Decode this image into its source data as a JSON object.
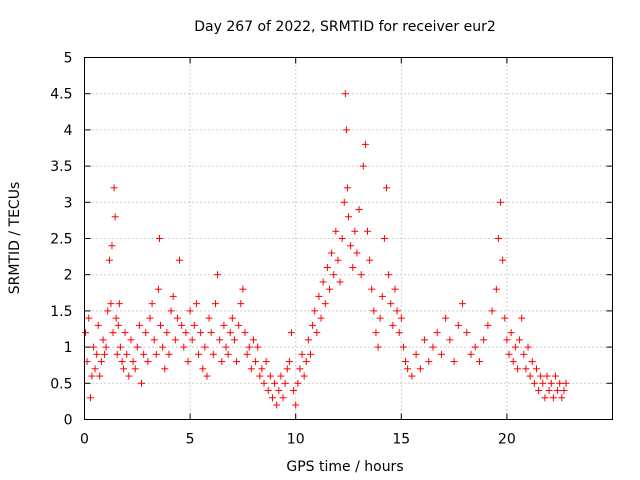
{
  "chart_data": {
    "type": "scatter",
    "title": "Day 267 of 2022, SRMTID for receiver eur2",
    "xlabel": "GPS time / hours",
    "ylabel": "SRMTID / TECUs",
    "xlim": [
      0,
      25
    ],
    "ylim": [
      0,
      5
    ],
    "xticks": [
      0,
      5,
      10,
      15,
      20
    ],
    "xtick_labels": [
      "0",
      "5",
      "10",
      "15",
      "20"
    ],
    "yticks": [
      0,
      0.5,
      1,
      1.5,
      2,
      2.5,
      3,
      3.5,
      4,
      4.5,
      5
    ],
    "ytick_labels": [
      "0",
      "0.5",
      "1",
      "1.5",
      "2",
      "2.5",
      "3",
      "3.5",
      "4",
      "4.5",
      "5"
    ],
    "grid": true,
    "marker": "plus",
    "color": "#ff0000",
    "series": [
      {
        "name": "SRMTID",
        "x": [
          0.05,
          0.12,
          0.2,
          0.28,
          0.35,
          0.42,
          0.5,
          0.58,
          0.65,
          0.72,
          0.8,
          0.88,
          0.95,
          1.02,
          1.1,
          1.18,
          1.25,
          1.3,
          1.35,
          1.4,
          1.45,
          1.5,
          1.55,
          1.6,
          1.65,
          1.7,
          1.78,
          1.85,
          1.92,
          2.0,
          2.1,
          2.2,
          2.3,
          2.4,
          2.5,
          2.6,
          2.7,
          2.8,
          2.9,
          3.0,
          3.1,
          3.2,
          3.3,
          3.4,
          3.5,
          3.55,
          3.6,
          3.7,
          3.8,
          3.9,
          4.0,
          4.1,
          4.2,
          4.3,
          4.4,
          4.5,
          4.6,
          4.7,
          4.8,
          4.9,
          5.0,
          5.1,
          5.2,
          5.3,
          5.4,
          5.5,
          5.6,
          5.7,
          5.8,
          5.9,
          6.0,
          6.1,
          6.2,
          6.3,
          6.4,
          6.5,
          6.6,
          6.7,
          6.8,
          6.9,
          7.0,
          7.1,
          7.2,
          7.3,
          7.4,
          7.5,
          7.6,
          7.7,
          7.8,
          7.9,
          8.0,
          8.1,
          8.2,
          8.3,
          8.4,
          8.5,
          8.6,
          8.7,
          8.8,
          8.9,
          9.0,
          9.1,
          9.2,
          9.3,
          9.4,
          9.5,
          9.6,
          9.7,
          9.8,
          9.9,
          10.0,
          10.1,
          10.2,
          10.3,
          10.4,
          10.5,
          10.6,
          10.7,
          10.8,
          10.9,
          11.0,
          11.1,
          11.2,
          11.3,
          11.4,
          11.5,
          11.6,
          11.7,
          11.8,
          11.9,
          12.0,
          12.1,
          12.2,
          12.3,
          12.35,
          12.4,
          12.45,
          12.5,
          12.6,
          12.7,
          12.8,
          12.9,
          13.0,
          13.1,
          13.2,
          13.3,
          13.4,
          13.5,
          13.6,
          13.7,
          13.8,
          13.9,
          14.0,
          14.1,
          14.2,
          14.3,
          14.4,
          14.5,
          14.6,
          14.7,
          14.8,
          14.9,
          15.0,
          15.1,
          15.2,
          15.3,
          15.5,
          15.7,
          15.9,
          16.1,
          16.3,
          16.5,
          16.7,
          16.9,
          17.1,
          17.3,
          17.5,
          17.7,
          17.9,
          18.1,
          18.3,
          18.5,
          18.7,
          18.9,
          19.1,
          19.3,
          19.5,
          19.6,
          19.7,
          19.8,
          19.9,
          20.0,
          20.1,
          20.2,
          20.3,
          20.4,
          20.5,
          20.6,
          20.7,
          20.8,
          20.9,
          21.0,
          21.1,
          21.2,
          21.3,
          21.4,
          21.5,
          21.6,
          21.7,
          21.8,
          21.9,
          22.0,
          22.1,
          22.2,
          22.3,
          22.4,
          22.5,
          22.6,
          22.7,
          22.8
        ],
        "y": [
          1.2,
          0.8,
          1.4,
          0.3,
          0.6,
          1.0,
          0.7,
          0.9,
          1.3,
          0.6,
          0.8,
          1.1,
          0.9,
          1.0,
          1.5,
          2.2,
          1.6,
          2.4,
          1.2,
          3.2,
          2.8,
          1.4,
          0.9,
          1.3,
          1.6,
          1.0,
          0.8,
          0.7,
          1.2,
          0.9,
          0.6,
          1.1,
          0.8,
          0.7,
          1.0,
          1.3,
          0.5,
          0.9,
          1.2,
          0.8,
          1.4,
          1.6,
          1.1,
          0.9,
          1.8,
          2.5,
          1.3,
          1.0,
          0.7,
          1.2,
          0.9,
          1.5,
          1.7,
          1.1,
          1.4,
          2.2,
          1.3,
          1.0,
          1.2,
          0.8,
          1.5,
          1.1,
          1.3,
          1.6,
          0.9,
          1.2,
          0.7,
          1.0,
          0.6,
          1.4,
          1.2,
          0.9,
          1.6,
          2.0,
          1.1,
          0.8,
          1.3,
          1.0,
          0.9,
          1.2,
          1.4,
          1.1,
          0.8,
          1.3,
          1.6,
          1.8,
          1.2,
          0.9,
          1.0,
          0.7,
          1.1,
          0.8,
          1.0,
          0.6,
          0.7,
          0.5,
          0.8,
          0.4,
          0.6,
          0.3,
          0.5,
          0.2,
          0.4,
          0.6,
          0.3,
          0.5,
          0.7,
          0.8,
          1.2,
          0.4,
          0.2,
          0.5,
          0.7,
          0.9,
          0.6,
          0.8,
          1.1,
          0.9,
          1.3,
          1.5,
          1.2,
          1.7,
          1.4,
          1.9,
          1.6,
          2.1,
          1.8,
          2.3,
          2.0,
          2.6,
          2.2,
          1.9,
          2.5,
          3.0,
          4.5,
          4.0,
          3.2,
          2.8,
          2.4,
          2.1,
          2.6,
          2.3,
          2.9,
          2.0,
          3.5,
          3.8,
          2.6,
          2.2,
          1.8,
          1.5,
          1.2,
          1.0,
          1.4,
          1.7,
          2.5,
          3.2,
          2.0,
          1.6,
          1.3,
          1.8,
          1.5,
          1.2,
          1.4,
          1.0,
          0.8,
          0.7,
          0.6,
          0.9,
          0.7,
          1.1,
          0.8,
          1.0,
          1.2,
          0.9,
          1.4,
          1.1,
          0.8,
          1.3,
          1.6,
          1.2,
          0.9,
          1.0,
          0.8,
          1.1,
          1.3,
          1.5,
          1.8,
          2.5,
          3.0,
          2.2,
          1.4,
          1.1,
          0.9,
          1.2,
          0.8,
          1.0,
          0.7,
          1.1,
          1.4,
          0.9,
          0.7,
          1.0,
          0.6,
          0.8,
          0.5,
          0.7,
          0.4,
          0.6,
          0.5,
          0.3,
          0.6,
          0.4,
          0.5,
          0.3,
          0.6,
          0.4,
          0.5,
          0.3,
          0.4,
          0.5
        ]
      }
    ]
  }
}
